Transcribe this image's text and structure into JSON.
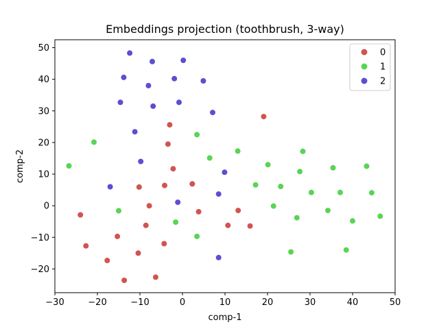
{
  "chart_data": {
    "type": "scatter",
    "title": "Embeddings projection (toothbrush, 3-way)",
    "xlabel": "comp-1",
    "ylabel": "comp-2",
    "xlim": [
      -30,
      50
    ],
    "ylim": [
      -27.5,
      52.5
    ],
    "xticks": [
      -30,
      -20,
      -10,
      0,
      10,
      20,
      30,
      40,
      50
    ],
    "yticks": [
      -20,
      -10,
      0,
      10,
      20,
      30,
      40,
      50
    ],
    "grid": false,
    "legend_position": "top-right",
    "series": [
      {
        "name": "0",
        "color": "#d1544f",
        "points": [
          [
            19.1,
            28.2
          ],
          [
            -3.0,
            25.6
          ],
          [
            -3.4,
            19.5
          ],
          [
            -2.2,
            11.7
          ],
          [
            -4.2,
            6.4
          ],
          [
            -10.2,
            5.9
          ],
          [
            2.3,
            6.9
          ],
          [
            -7.8,
            0.0
          ],
          [
            3.8,
            -1.9
          ],
          [
            -24.0,
            -2.9
          ],
          [
            13.1,
            -1.5
          ],
          [
            -8.6,
            -6.2
          ],
          [
            10.7,
            -6.2
          ],
          [
            15.9,
            -6.4
          ],
          [
            -15.3,
            -9.7
          ],
          [
            -22.7,
            -12.7
          ],
          [
            -4.3,
            -12.0
          ],
          [
            -10.4,
            -15.0
          ],
          [
            -17.7,
            -17.3
          ],
          [
            -6.3,
            -22.6
          ],
          [
            -13.7,
            -23.6
          ]
        ]
      },
      {
        "name": "1",
        "color": "#59d455",
        "points": [
          [
            -20.8,
            20.1
          ],
          [
            3.4,
            22.5
          ],
          [
            28.3,
            17.2
          ],
          [
            13.0,
            17.3
          ],
          [
            6.4,
            15.1
          ],
          [
            -26.7,
            12.6
          ],
          [
            20.1,
            13.0
          ],
          [
            27.6,
            10.8
          ],
          [
            35.4,
            12.0
          ],
          [
            43.3,
            12.5
          ],
          [
            17.2,
            6.6
          ],
          [
            23.1,
            6.1
          ],
          [
            30.3,
            4.2
          ],
          [
            37.1,
            4.2
          ],
          [
            44.5,
            4.1
          ],
          [
            21.4,
            -0.1
          ],
          [
            -15.0,
            -1.6
          ],
          [
            34.2,
            -1.5
          ],
          [
            46.5,
            -3.3
          ],
          [
            26.9,
            -3.8
          ],
          [
            40.0,
            -4.8
          ],
          [
            -1.6,
            -5.2
          ],
          [
            3.4,
            -9.7
          ],
          [
            38.5,
            -14.0
          ],
          [
            25.5,
            -14.6
          ]
        ]
      },
      {
        "name": "2",
        "color": "#5b4fd1",
        "points": [
          [
            -12.4,
            48.3
          ],
          [
            0.2,
            46.0
          ],
          [
            -7.1,
            45.6
          ],
          [
            -13.8,
            40.6
          ],
          [
            -1.9,
            40.2
          ],
          [
            4.9,
            39.5
          ],
          [
            -8.0,
            38.0
          ],
          [
            -14.6,
            32.7
          ],
          [
            -0.8,
            32.7
          ],
          [
            -6.9,
            31.5
          ],
          [
            7.1,
            29.5
          ],
          [
            -11.2,
            23.4
          ],
          [
            -9.8,
            14.0
          ],
          [
            9.9,
            10.6
          ],
          [
            -17.0,
            6.0
          ],
          [
            8.5,
            3.7
          ],
          [
            -1.1,
            1.1
          ],
          [
            8.5,
            -16.4
          ]
        ]
      }
    ]
  }
}
